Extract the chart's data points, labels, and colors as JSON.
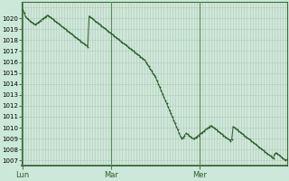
{
  "background_color": "#cce8d8",
  "plot_bg_color": "#cce8d8",
  "line_color": "#2d5e2d",
  "marker_color": "#2d5e2d",
  "grid_color_v": "#b8c8b8",
  "grid_color_h": "#b8c8b8",
  "ylim": [
    1006.5,
    1021.5
  ],
  "ytick_values": [
    1007,
    1008,
    1009,
    1010,
    1011,
    1012,
    1013,
    1014,
    1015,
    1016,
    1017,
    1018,
    1019,
    1020
  ],
  "day_labels": [
    "Lun",
    "Mar",
    "Mer"
  ],
  "figsize": [
    3.2,
    2.0
  ],
  "dpi": 100,
  "pressure_values": [
    1020.8,
    1020.5,
    1020.2,
    1020.0,
    1019.9,
    1019.8,
    1019.7,
    1019.6,
    1019.5,
    1019.4,
    1019.5,
    1019.6,
    1019.7,
    1019.8,
    1019.9,
    1020.0,
    1020.1,
    1020.2,
    1020.3,
    1020.2,
    1020.1,
    1020.0,
    1019.9,
    1019.8,
    1019.7,
    1019.6,
    1019.5,
    1019.4,
    1019.3,
    1019.2,
    1019.1,
    1019.0,
    1018.9,
    1018.8,
    1018.7,
    1018.6,
    1018.5,
    1018.4,
    1018.3,
    1018.2,
    1018.1,
    1018.0,
    1017.9,
    1017.8,
    1017.7,
    1017.6,
    1017.5,
    1017.4,
    1020.2,
    1020.1,
    1020.0,
    1019.9,
    1019.8,
    1019.7,
    1019.6,
    1019.5,
    1019.4,
    1019.3,
    1019.2,
    1019.1,
    1019.0,
    1018.9,
    1018.8,
    1018.7,
    1018.6,
    1018.5,
    1018.4,
    1018.3,
    1018.2,
    1018.1,
    1018.0,
    1017.9,
    1017.8,
    1017.7,
    1017.6,
    1017.5,
    1017.4,
    1017.3,
    1017.2,
    1017.1,
    1017.0,
    1016.9,
    1016.8,
    1016.7,
    1016.6,
    1016.5,
    1016.4,
    1016.3,
    1016.2,
    1016.0,
    1015.8,
    1015.6,
    1015.4,
    1015.2,
    1015.0,
    1014.8,
    1014.6,
    1014.3,
    1014.0,
    1013.7,
    1013.4,
    1013.1,
    1012.8,
    1012.5,
    1012.2,
    1011.9,
    1011.6,
    1011.3,
    1011.0,
    1010.7,
    1010.4,
    1010.1,
    1009.8,
    1009.5,
    1009.2,
    1009.0,
    1009.1,
    1009.3,
    1009.5,
    1009.4,
    1009.3,
    1009.2,
    1009.1,
    1009.0,
    1009.0,
    1009.1,
    1009.2,
    1009.3,
    1009.4,
    1009.5,
    1009.6,
    1009.7,
    1009.8,
    1009.9,
    1010.0,
    1010.1,
    1010.2,
    1010.1,
    1010.0,
    1009.9,
    1009.8,
    1009.7,
    1009.6,
    1009.5,
    1009.4,
    1009.3,
    1009.2,
    1009.1,
    1009.0,
    1008.9,
    1008.8,
    1008.9,
    1010.1,
    1010.0,
    1009.9,
    1009.8,
    1009.7,
    1009.6,
    1009.5,
    1009.4,
    1009.3,
    1009.2,
    1009.1,
    1009.0,
    1008.9,
    1008.8,
    1008.7,
    1008.6,
    1008.5,
    1008.4,
    1008.3,
    1008.2,
    1008.1,
    1008.0,
    1007.9,
    1007.8,
    1007.7,
    1007.6,
    1007.5,
    1007.4,
    1007.3,
    1007.2,
    1007.6,
    1007.7,
    1007.6,
    1007.5,
    1007.4,
    1007.3,
    1007.2,
    1007.1,
    1007.0,
    1007.1
  ]
}
